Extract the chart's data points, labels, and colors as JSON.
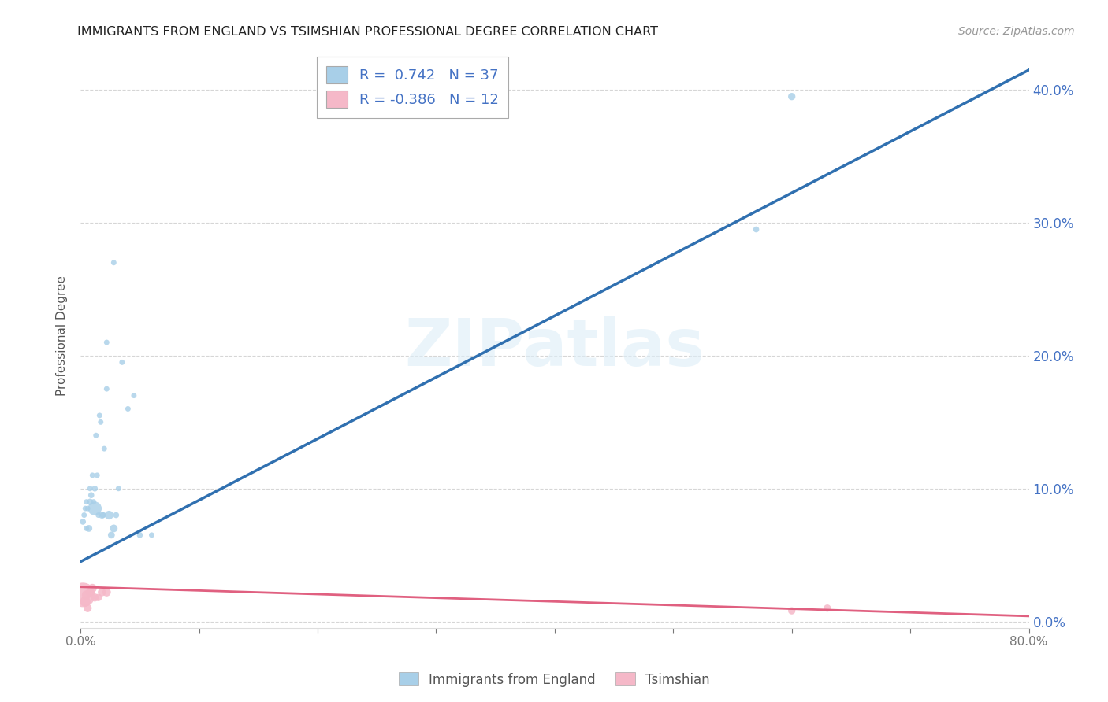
{
  "title": "IMMIGRANTS FROM ENGLAND VS TSIMSHIAN PROFESSIONAL DEGREE CORRELATION CHART",
  "source": "Source: ZipAtlas.com",
  "ylabel": "Professional Degree",
  "watermark": "ZIPatlas",
  "legend_blue_R": "0.742",
  "legend_blue_N": "37",
  "legend_pink_R": "-0.386",
  "legend_pink_N": "12",
  "blue_color": "#a8cfe8",
  "blue_line_color": "#3070b0",
  "pink_color": "#f5b8c8",
  "pink_line_color": "#e06080",
  "background_color": "#ffffff",
  "grid_color": "#cccccc",
  "xlim": [
    0.0,
    0.8
  ],
  "ylim": [
    -0.005,
    0.435
  ],
  "ytick_vals": [
    0.0,
    0.1,
    0.2,
    0.3,
    0.4
  ],
  "ytick_labels_right": [
    "0.0%",
    "10.0%",
    "20.0%",
    "30.0%",
    "40.0%"
  ],
  "right_axis_color": "#4472c4",
  "blue_scatter_x": [
    0.002,
    0.003,
    0.004,
    0.005,
    0.006,
    0.007,
    0.008,
    0.009,
    0.01,
    0.011,
    0.012,
    0.013,
    0.014,
    0.015,
    0.016,
    0.017,
    0.018,
    0.019,
    0.02,
    0.022,
    0.024,
    0.026,
    0.028,
    0.03,
    0.032,
    0.035,
    0.04,
    0.045,
    0.05,
    0.06,
    0.005,
    0.008,
    0.012,
    0.022,
    0.028,
    0.57,
    0.6
  ],
  "blue_scatter_y": [
    0.075,
    0.08,
    0.085,
    0.09,
    0.085,
    0.07,
    0.1,
    0.095,
    0.11,
    0.09,
    0.085,
    0.14,
    0.11,
    0.08,
    0.155,
    0.15,
    0.08,
    0.08,
    0.13,
    0.21,
    0.08,
    0.065,
    0.07,
    0.08,
    0.1,
    0.195,
    0.16,
    0.17,
    0.065,
    0.065,
    0.07,
    0.09,
    0.1,
    0.175,
    0.27,
    0.295,
    0.395
  ],
  "blue_scatter_sizes": [
    30,
    25,
    25,
    25,
    25,
    40,
    25,
    30,
    25,
    25,
    160,
    25,
    25,
    25,
    25,
    25,
    40,
    30,
    25,
    25,
    65,
    40,
    50,
    30,
    25,
    25,
    25,
    25,
    30,
    25,
    25,
    35,
    30,
    25,
    25,
    30,
    45
  ],
  "pink_scatter_x": [
    0.002,
    0.004,
    0.005,
    0.006,
    0.008,
    0.01,
    0.012,
    0.015,
    0.018,
    0.022,
    0.6,
    0.63
  ],
  "pink_scatter_y": [
    0.02,
    0.015,
    0.02,
    0.01,
    0.022,
    0.025,
    0.018,
    0.018,
    0.022,
    0.022,
    0.008,
    0.01
  ],
  "pink_scatter_sizes": [
    500,
    90,
    70,
    55,
    60,
    65,
    55,
    45,
    55,
    60,
    45,
    45
  ],
  "blue_line_x": [
    0.0,
    0.8
  ],
  "blue_line_y_start": 0.045,
  "blue_line_y_end": 0.415,
  "pink_line_x": [
    0.0,
    0.8
  ],
  "pink_line_y_start": 0.026,
  "pink_line_y_end": 0.004
}
